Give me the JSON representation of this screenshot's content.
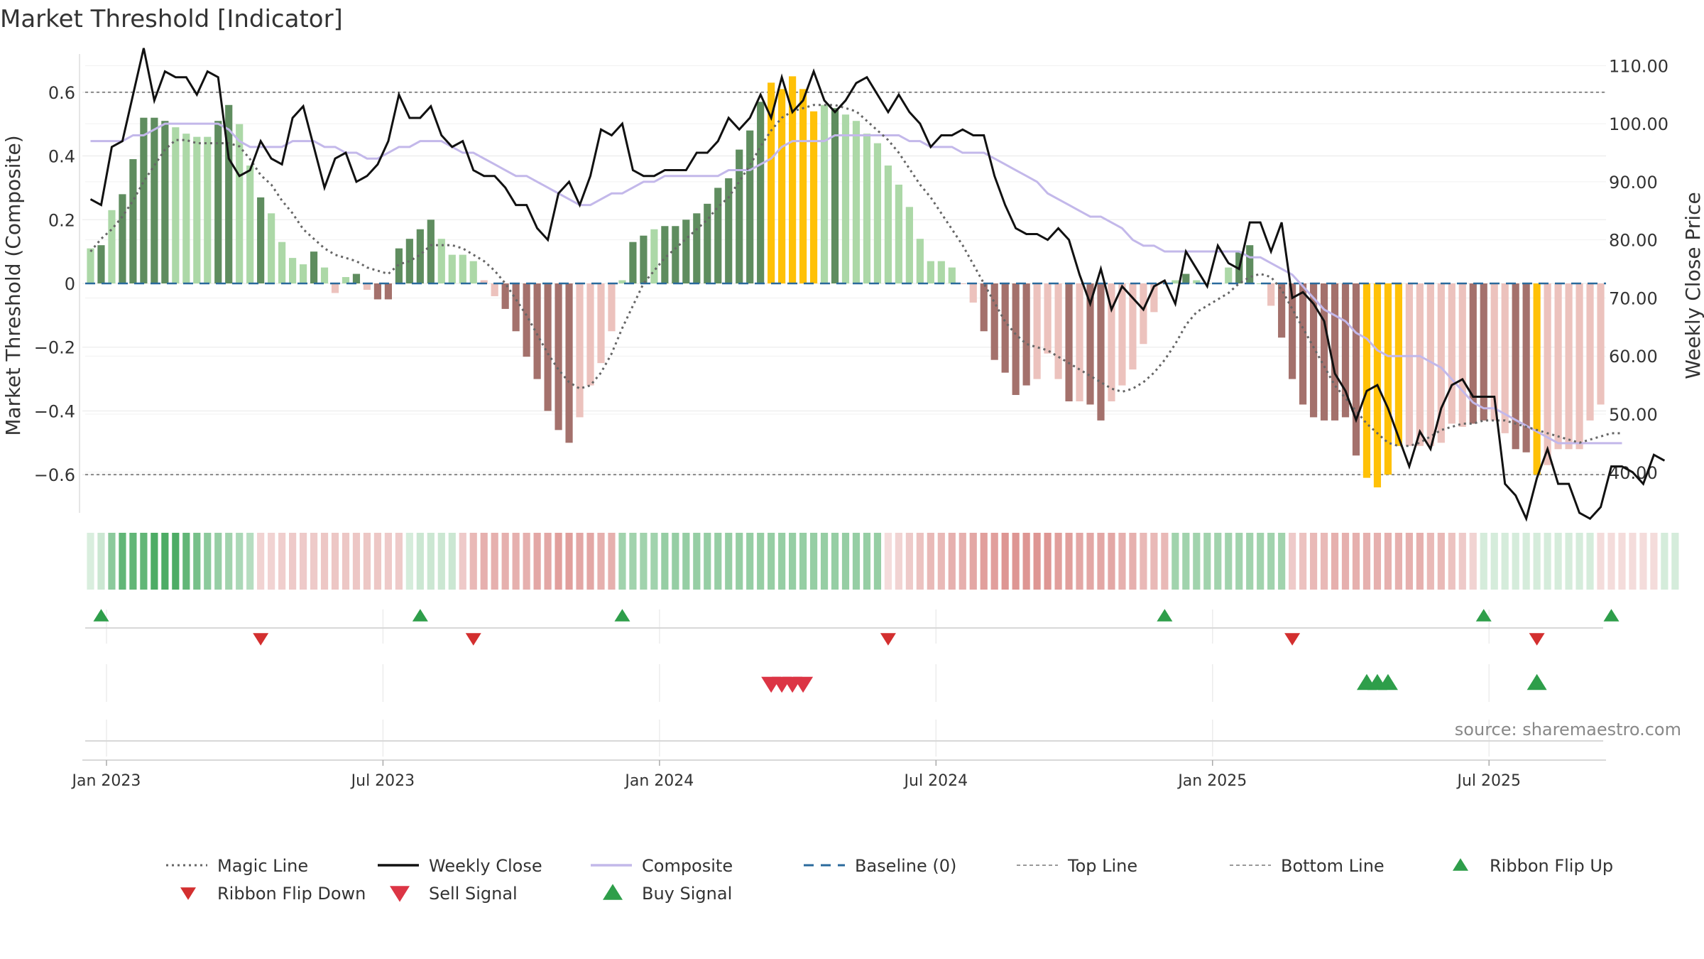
{
  "chart_data": {
    "type": "bar",
    "title": "Market Threshold [Indicator]",
    "ylabel_left": "Market Threshold (Composite)",
    "ylabel_right": "Weekly Close Price",
    "source": "source: sharemaestro.com",
    "ylim_left": [
      -0.72,
      0.72
    ],
    "ylim_right": [
      33,
      112
    ],
    "yticks_left": [
      {
        "v": 0.6,
        "label": "0.6"
      },
      {
        "v": 0.4,
        "label": "0.4"
      },
      {
        "v": 0.2,
        "label": "0.2"
      },
      {
        "v": 0,
        "label": "0"
      },
      {
        "v": -0.2,
        "label": "−0.2"
      },
      {
        "v": -0.4,
        "label": "−0.4"
      },
      {
        "v": -0.6,
        "label": "−0.6"
      }
    ],
    "yticks_right": [
      {
        "v": 110,
        "label": "110.00"
      },
      {
        "v": 100,
        "label": "100.00"
      },
      {
        "v": 90,
        "label": "90.00"
      },
      {
        "v": 80,
        "label": "80.00"
      },
      {
        "v": 70,
        "label": "70.00"
      },
      {
        "v": 60,
        "label": "60.00"
      },
      {
        "v": 50,
        "label": "50.00"
      },
      {
        "v": 40,
        "label": "40.00"
      }
    ],
    "xticks": [
      {
        "week": 1.5,
        "label": "Jan 2023"
      },
      {
        "week": 27.5,
        "label": "Jul 2023"
      },
      {
        "week": 53.5,
        "label": "Jan 2024"
      },
      {
        "week": 79.5,
        "label": "Jul 2024"
      },
      {
        "week": 105.5,
        "label": "Jan 2025"
      },
      {
        "week": 131.5,
        "label": "Jul 2025"
      }
    ],
    "top_line": 0.6,
    "bottom_line": -0.6,
    "composite_bars": [
      0.11,
      0.12,
      0.23,
      0.28,
      0.39,
      0.52,
      0.52,
      0.51,
      0.49,
      0.47,
      0.46,
      0.46,
      0.51,
      0.56,
      0.5,
      0.37,
      0.27,
      0.22,
      0.13,
      0.08,
      0.06,
      0.1,
      0.05,
      -0.03,
      0.02,
      0.03,
      -0.02,
      -0.05,
      -0.05,
      0.11,
      0.14,
      0.17,
      0.2,
      0.14,
      0.09,
      0.09,
      0.07,
      0.01,
      -0.04,
      -0.08,
      -0.15,
      -0.23,
      -0.3,
      -0.4,
      -0.46,
      -0.5,
      -0.42,
      -0.32,
      -0.25,
      -0.15,
      0.01,
      0.13,
      0.15,
      0.17,
      0.18,
      0.18,
      0.2,
      0.22,
      0.25,
      0.3,
      0.33,
      0.42,
      0.48,
      0.57,
      0.63,
      0.61,
      0.65,
      0.61,
      0.54,
      0.56,
      0.55,
      0.53,
      0.51,
      0.47,
      0.44,
      0.37,
      0.31,
      0.24,
      0.14,
      0.07,
      0.07,
      0.05,
      0.0,
      -0.06,
      -0.15,
      -0.24,
      -0.28,
      -0.35,
      -0.32,
      -0.3,
      -0.22,
      -0.3,
      -0.37,
      -0.37,
      -0.38,
      -0.43,
      -0.37,
      -0.32,
      -0.27,
      -0.19,
      -0.09,
      0.0,
      0.01,
      0.03,
      0.01,
      0.0,
      0.0,
      0.05,
      0.1,
      0.12,
      0.0,
      -0.07,
      -0.17,
      -0.3,
      -0.38,
      -0.42,
      -0.43,
      -0.43,
      -0.42,
      -0.54,
      -0.61,
      -0.64,
      -0.6,
      -0.51,
      -0.51,
      -0.51,
      -0.51,
      -0.5,
      -0.44,
      -0.45,
      -0.44,
      -0.43,
      -0.43,
      -0.47,
      -0.52,
      -0.53,
      -0.6,
      -0.57,
      -0.52,
      -0.52,
      -0.52,
      -0.43,
      -0.38
    ],
    "bar_state": [
      "lg",
      "dg",
      "lg",
      "dg",
      "dg",
      "dg",
      "dg",
      "dg",
      "lg",
      "lg",
      "lg",
      "lg",
      "dg",
      "dg",
      "lg",
      "lg",
      "dg",
      "lg",
      "lg",
      "lg",
      "lg",
      "dg",
      "lg",
      "lr",
      "lg",
      "dg",
      "lr",
      "dr",
      "dr",
      "dg",
      "dg",
      "dg",
      "dg",
      "lg",
      "lg",
      "lg",
      "lg",
      "lr",
      "lr",
      "dr",
      "dr",
      "dr",
      "dr",
      "dr",
      "dr",
      "dr",
      "lr",
      "lr",
      "lr",
      "lr",
      "lg",
      "dg",
      "dg",
      "lg",
      "dg",
      "dg",
      "dg",
      "dg",
      "dg",
      "dg",
      "dg",
      "dg",
      "dg",
      "dg",
      "y",
      "y",
      "y",
      "y",
      "y",
      "lg",
      "dg",
      "lg",
      "lg",
      "lg",
      "lg",
      "lg",
      "lg",
      "lg",
      "lg",
      "lg",
      "lg",
      "lg",
      "lr",
      "lr",
      "dr",
      "dr",
      "dr",
      "dr",
      "dr",
      "lr",
      "lr",
      "lr",
      "dr",
      "lr",
      "dr",
      "dr",
      "lr",
      "lr",
      "lr",
      "lr",
      "lr",
      "lr",
      "lg",
      "dg",
      "lg",
      "lg",
      "lg",
      "lg",
      "dg",
      "dg",
      "lg",
      "lr",
      "dr",
      "dr",
      "dr",
      "dr",
      "dr",
      "dr",
      "dr",
      "dr",
      "y",
      "y",
      "y",
      "y",
      "lr",
      "lr",
      "lr",
      "lr",
      "lr",
      "lr",
      "dr",
      "dr",
      "lr",
      "lr",
      "dr",
      "dr",
      "y",
      "lr",
      "lr",
      "lr",
      "lr",
      "lr",
      "lr"
    ],
    "weekly_close": [
      87,
      86,
      96,
      97,
      105,
      113,
      104,
      109,
      108,
      108,
      105,
      109,
      108,
      94,
      91,
      92,
      97,
      94,
      93,
      101,
      103,
      96,
      89,
      94,
      95,
      90,
      91,
      93,
      97,
      105,
      101,
      101,
      103,
      98,
      96,
      97,
      92,
      91,
      91,
      89,
      86,
      86,
      82,
      80,
      88,
      90,
      86,
      91,
      99,
      98,
      100,
      92,
      91,
      91,
      92,
      92,
      92,
      95,
      95,
      97,
      101,
      99,
      101,
      105,
      101,
      108,
      102,
      104,
      109,
      104,
      102,
      104,
      107,
      108,
      105,
      102,
      105,
      102,
      100,
      96,
      98,
      98,
      99,
      98,
      98,
      91,
      86,
      82,
      81,
      81,
      80,
      82,
      80,
      74,
      69,
      75,
      68,
      72,
      70,
      68,
      72,
      73,
      69,
      78,
      75,
      72,
      79,
      76,
      75,
      83,
      83,
      78,
      83,
      70,
      71,
      69,
      66,
      57,
      54,
      49,
      54,
      55,
      51,
      46,
      41,
      47,
      44,
      51,
      55,
      56,
      53,
      53,
      53,
      38,
      36,
      32,
      39,
      44,
      38,
      38,
      33,
      32,
      34,
      41,
      41,
      40,
      38,
      43,
      42
    ],
    "composite_line": [
      97,
      97,
      97,
      97,
      98,
      98,
      99,
      100,
      100,
      100,
      100,
      100,
      100,
      99,
      97,
      96,
      96,
      96,
      96,
      97,
      97,
      97,
      96,
      96,
      95,
      95,
      94,
      94,
      95,
      96,
      96,
      97,
      97,
      97,
      96,
      95,
      95,
      94,
      93,
      92,
      91,
      91,
      90,
      89,
      88,
      87,
      86,
      86,
      87,
      88,
      88,
      89,
      90,
      90,
      91,
      91,
      91,
      91,
      91,
      91,
      92,
      92,
      92,
      93,
      94,
      96,
      97,
      97,
      97,
      97,
      98,
      98,
      98,
      98,
      98,
      98,
      98,
      97,
      97,
      96,
      96,
      96,
      95,
      95,
      95,
      94,
      93,
      92,
      91,
      90,
      88,
      87,
      86,
      85,
      84,
      84,
      83,
      82,
      80,
      79,
      79,
      78,
      78,
      78,
      78,
      78,
      78,
      78,
      78,
      77,
      77,
      76,
      75,
      74,
      72,
      70,
      68,
      67,
      66,
      64,
      63,
      61,
      60,
      60,
      60,
      60,
      59,
      58,
      56,
      54,
      52,
      51,
      51,
      50,
      49,
      48,
      47,
      46,
      45,
      45,
      45,
      45,
      45,
      45,
      45
    ],
    "magic_line": [
      0.1,
      0.14,
      0.17,
      0.21,
      0.26,
      0.32,
      0.37,
      0.42,
      0.45,
      0.45,
      0.44,
      0.44,
      0.44,
      0.44,
      0.43,
      0.39,
      0.34,
      0.31,
      0.26,
      0.22,
      0.17,
      0.14,
      0.11,
      0.09,
      0.08,
      0.07,
      0.05,
      0.04,
      0.03,
      0.06,
      0.07,
      0.09,
      0.12,
      0.12,
      0.12,
      0.11,
      0.09,
      0.07,
      0.04,
      0.0,
      -0.05,
      -0.1,
      -0.16,
      -0.22,
      -0.27,
      -0.31,
      -0.33,
      -0.32,
      -0.28,
      -0.22,
      -0.14,
      -0.07,
      0.0,
      0.04,
      0.08,
      0.11,
      0.14,
      0.17,
      0.2,
      0.24,
      0.27,
      0.32,
      0.37,
      0.43,
      0.48,
      0.52,
      0.54,
      0.55,
      0.56,
      0.56,
      0.56,
      0.55,
      0.54,
      0.51,
      0.48,
      0.45,
      0.41,
      0.36,
      0.31,
      0.27,
      0.22,
      0.17,
      0.12,
      0.06,
      0.0,
      -0.06,
      -0.12,
      -0.16,
      -0.19,
      -0.2,
      -0.21,
      -0.23,
      -0.25,
      -0.27,
      -0.29,
      -0.31,
      -0.33,
      -0.34,
      -0.33,
      -0.31,
      -0.28,
      -0.24,
      -0.19,
      -0.13,
      -0.09,
      -0.07,
      -0.05,
      -0.03,
      0.0,
      0.02,
      0.03,
      0.02,
      -0.02,
      -0.08,
      -0.14,
      -0.2,
      -0.26,
      -0.32,
      -0.36,
      -0.4,
      -0.44,
      -0.47,
      -0.5,
      -0.51,
      -0.51,
      -0.5,
      -0.48,
      -0.46,
      -0.45,
      -0.44,
      -0.44,
      -0.43,
      -0.43,
      -0.43,
      -0.44,
      -0.45,
      -0.46,
      -0.47,
      -0.48,
      -0.49,
      -0.5,
      -0.49,
      -0.48,
      -0.47,
      -0.47
    ],
    "ribbon": [
      0.15,
      0.25,
      0.55,
      0.75,
      0.75,
      0.75,
      0.85,
      0.85,
      0.85,
      0.75,
      0.65,
      0.55,
      0.5,
      0.45,
      0.4,
      0.35,
      -0.25,
      -0.25,
      -0.28,
      -0.3,
      -0.3,
      -0.3,
      -0.32,
      -0.32,
      -0.32,
      -0.32,
      -0.32,
      -0.32,
      -0.3,
      -0.3,
      0.2,
      0.25,
      0.25,
      0.25,
      0.25,
      -0.3,
      -0.4,
      -0.45,
      -0.45,
      -0.45,
      -0.45,
      -0.45,
      -0.5,
      -0.5,
      -0.55,
      -0.55,
      -0.5,
      -0.5,
      -0.45,
      -0.45,
      0.45,
      0.45,
      0.45,
      0.45,
      0.5,
      0.5,
      0.5,
      0.5,
      0.5,
      0.5,
      0.5,
      0.5,
      0.5,
      0.5,
      0.5,
      0.5,
      0.5,
      0.5,
      0.5,
      0.5,
      0.5,
      0.5,
      0.5,
      0.5,
      0.5,
      -0.2,
      -0.25,
      -0.3,
      -0.35,
      -0.4,
      -0.4,
      -0.45,
      -0.45,
      -0.5,
      -0.55,
      -0.55,
      -0.6,
      -0.6,
      -0.6,
      -0.6,
      -0.6,
      -0.55,
      -0.55,
      -0.5,
      -0.5,
      -0.5,
      -0.5,
      -0.45,
      -0.45,
      -0.4,
      -0.4,
      -0.4,
      0.45,
      0.45,
      0.45,
      0.45,
      0.45,
      0.45,
      0.45,
      0.45,
      0.45,
      0.45,
      0.45,
      -0.3,
      -0.35,
      -0.4,
      -0.4,
      -0.45,
      -0.45,
      -0.45,
      -0.45,
      -0.45,
      -0.45,
      -0.45,
      -0.45,
      -0.45,
      -0.4,
      -0.4,
      -0.35,
      -0.3,
      -0.25,
      0.2,
      0.2,
      0.2,
      0.2,
      0.2,
      0.2,
      0.2,
      0.2,
      0.2,
      0.2,
      0.2,
      -0.2,
      -0.2,
      -0.2,
      -0.2,
      -0.2,
      -0.2,
      0.2,
      0.2
    ],
    "ribbon_flip_up": [
      1,
      31,
      50,
      101,
      131,
      143
    ],
    "ribbon_flip_down": [
      16,
      36,
      75,
      113,
      136
    ],
    "sell_signal": [
      64,
      65,
      66,
      67
    ],
    "buy_signal": [
      120,
      121,
      122,
      136
    ],
    "legend": [
      {
        "label": "Magic Line",
        "type": "dotted",
        "color": "#666666"
      },
      {
        "label": "Weekly Close",
        "type": "solid",
        "color": "#111111"
      },
      {
        "label": "Composite",
        "type": "solid",
        "color": "#c3b8ea"
      },
      {
        "label": "Baseline (0)",
        "type": "dashed",
        "color": "#2a6a9c"
      },
      {
        "label": "Top Line",
        "type": "dashed-light",
        "color": "#999999"
      },
      {
        "label": "Bottom Line",
        "type": "dashed-light",
        "color": "#999999"
      },
      {
        "label": "Ribbon Flip Up",
        "type": "tri-up",
        "color": "#2e9e4a"
      },
      {
        "label": "Ribbon Flip Down",
        "type": "tri-down",
        "color": "#d32f2f"
      },
      {
        "label": "Sell Signal",
        "type": "tri-down-big",
        "color": "#dc3545"
      },
      {
        "label": "Buy Signal",
        "type": "tri-up-big",
        "color": "#2e9e4a"
      }
    ],
    "colors": {
      "dark_green": "#5f8d5f",
      "light_green": "#acd8a7",
      "dark_red": "#a4716c",
      "light_red": "#ecc2bd",
      "yellow": "#ffc107",
      "grid": "#e8e8e8"
    }
  }
}
